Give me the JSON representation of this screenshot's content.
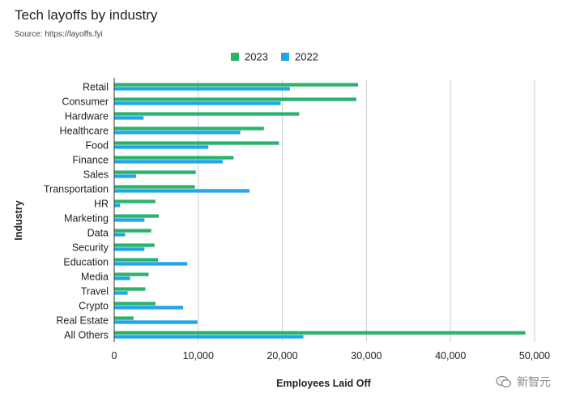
{
  "chart_data": {
    "type": "bar",
    "orientation": "horizontal",
    "title": "Tech layoffs by industry",
    "subtitle": "Source: https://layoffs.fyi",
    "xlabel": "Employees Laid Off",
    "ylabel": "Industry",
    "xlim": [
      0,
      50000
    ],
    "xticks": [
      0,
      10000,
      20000,
      30000,
      40000,
      50000
    ],
    "xtick_labels": [
      "0",
      "10,000",
      "20,000",
      "30,000",
      "40,000",
      "50,000"
    ],
    "grid": true,
    "legend_position": "top",
    "categories": [
      "Retail",
      "Consumer",
      "Hardware",
      "Healthcare",
      "Food",
      "Finance",
      "Sales",
      "Transportation",
      "HR",
      "Marketing",
      "Data",
      "Security",
      "Education",
      "Media",
      "Travel",
      "Crypto",
      "Real Estate",
      "All Others"
    ],
    "series": [
      {
        "name": "2023",
        "color": "#2ab36b",
        "values": [
          29000,
          28800,
          22000,
          17800,
          19600,
          14200,
          9700,
          9600,
          4900,
          5300,
          4400,
          4800,
          5200,
          4100,
          3700,
          4900,
          2300,
          48900
        ]
      },
      {
        "name": "2022",
        "color": "#1ea5ea",
        "values": [
          20900,
          19800,
          3500,
          15000,
          11200,
          12900,
          2600,
          16100,
          700,
          3600,
          1300,
          3600,
          8700,
          1900,
          1600,
          8200,
          9900,
          22500
        ]
      }
    ]
  },
  "watermark": {
    "icon": "wechat-icon",
    "text": "新智元"
  }
}
